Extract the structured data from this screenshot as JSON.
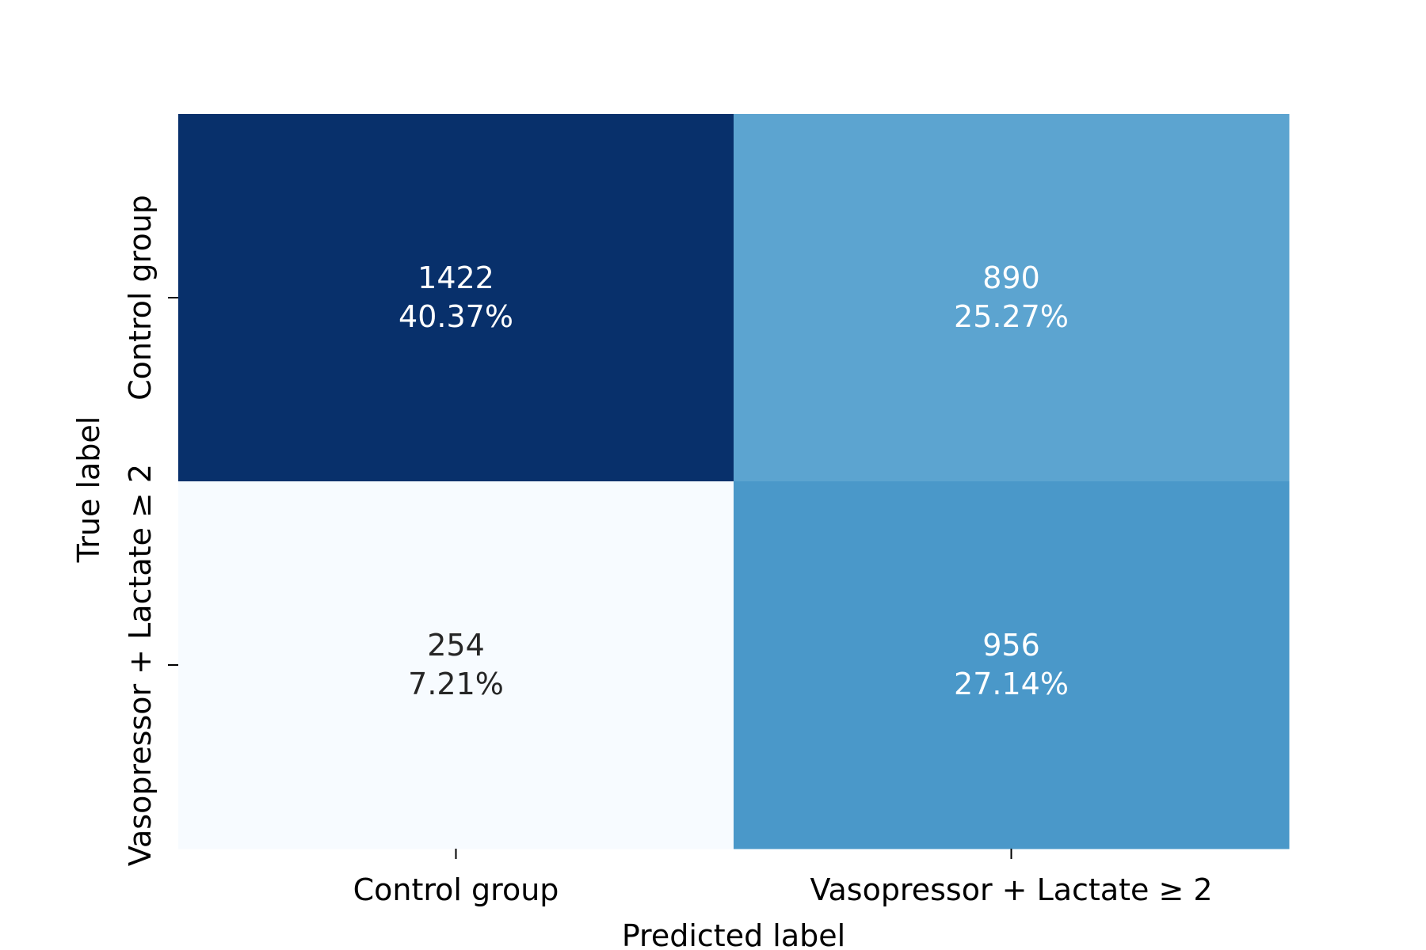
{
  "chart_data": {
    "type": "heatmap",
    "title": "",
    "xlabel": "Predicted label",
    "ylabel": "True label",
    "x_categories": [
      "Control group",
      "Vasopressor + Lactate ≥ 2"
    ],
    "y_categories": [
      "Control group",
      "Vasopressor + Lactate ≥ 2"
    ],
    "cells": [
      [
        {
          "count": "1422",
          "percent": "40.37%",
          "color": "#08306b",
          "text_color": "#ffffff"
        },
        {
          "count": "890",
          "percent": "25.27%",
          "color": "#5ca4d0",
          "text_color": "#ffffff"
        }
      ],
      [
        {
          "count": "254",
          "percent": "7.21%",
          "color": "#f7fbff",
          "text_color": "#262626"
        },
        {
          "count": "956",
          "percent": "27.14%",
          "color": "#4a98c9",
          "text_color": "#ffffff"
        }
      ]
    ],
    "colormap": "Blues",
    "colorbar": false,
    "grid": false
  }
}
